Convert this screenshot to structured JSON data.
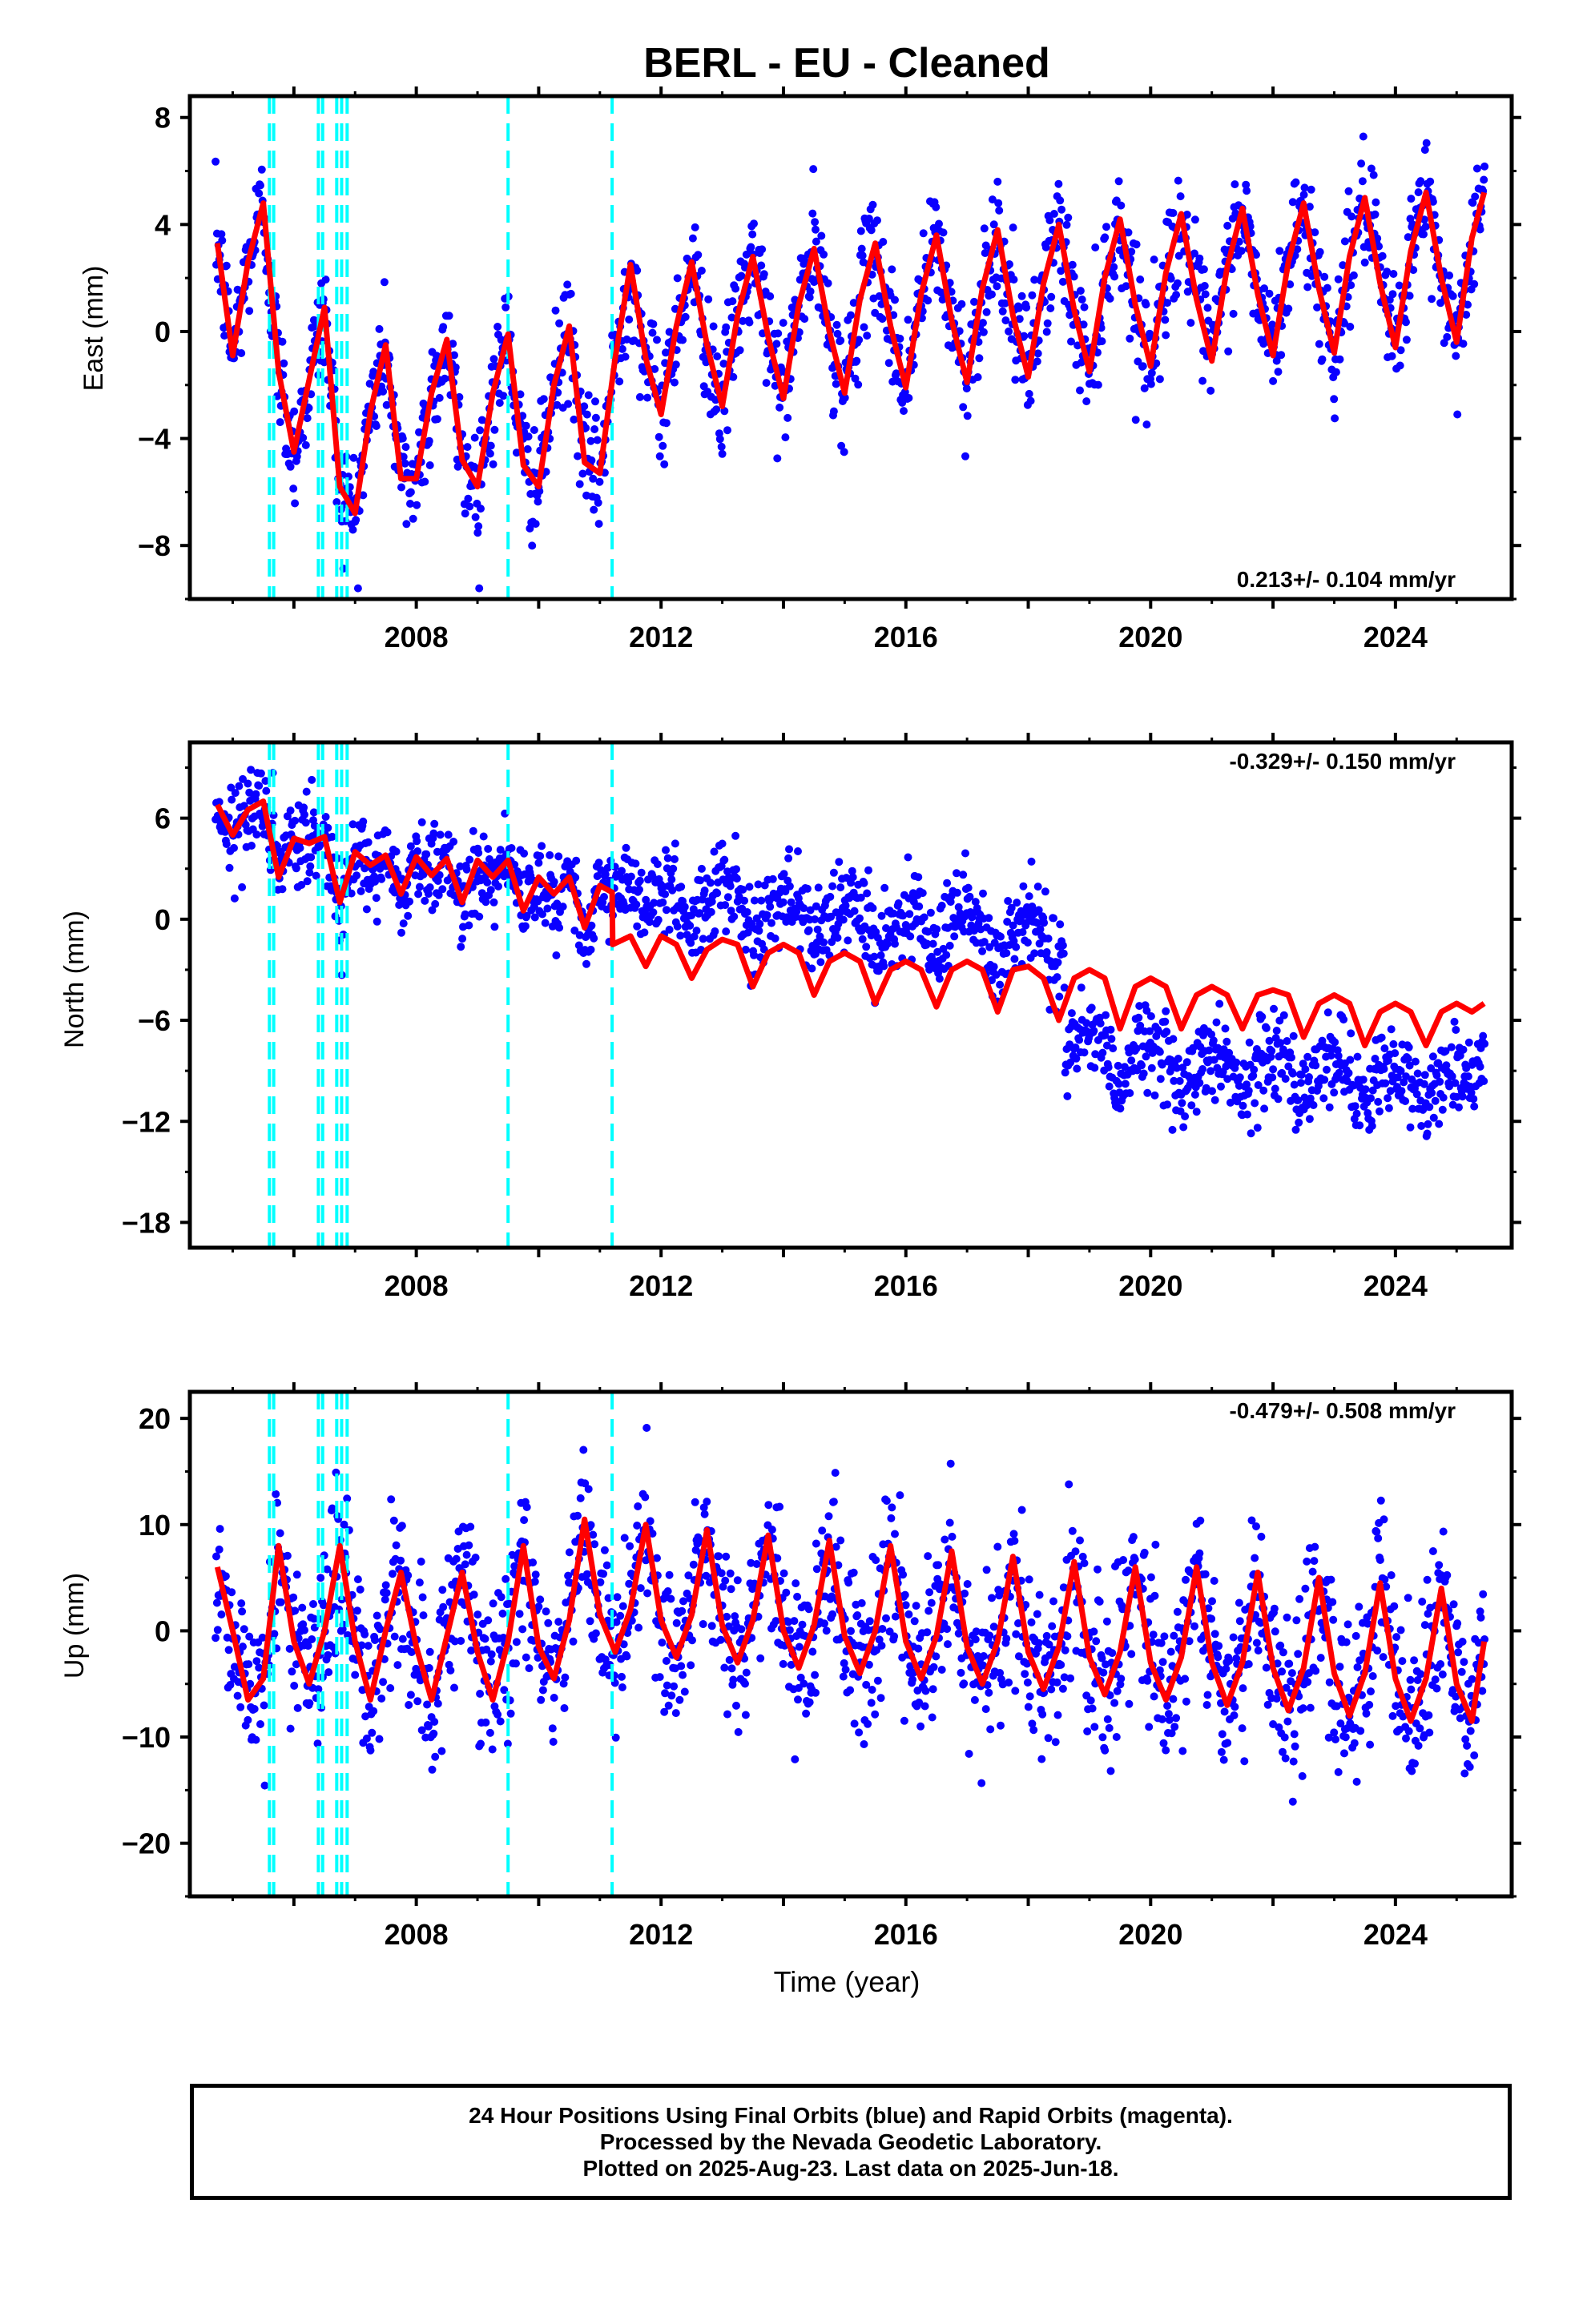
{
  "title": "BERL  - EU - Cleaned",
  "colors": {
    "data": "#0a00ff",
    "model": "#ff0000",
    "offset": "#00ffff",
    "axis": "#000000"
  },
  "chart_data": [
    {
      "type": "scatter",
      "name": "east",
      "ylabel": "East (mm)",
      "xlim": [
        2004.3,
        2025.9
      ],
      "ylim": [
        -10,
        8.8
      ],
      "yticks": [
        8,
        4,
        0,
        -4,
        -8
      ],
      "xticks": [
        2008,
        2012,
        2016,
        2020,
        2024
      ],
      "rate": "0.213+/- 0.104 mm/yr",
      "model": {
        "x": [
          2004.75,
          2005.0,
          2005.25,
          2005.5,
          2005.75,
          2006.0,
          2006.25,
          2006.5,
          2006.75,
          2007.0,
          2007.25,
          2007.5,
          2007.75,
          2008.0,
          2008.25,
          2008.5,
          2008.75,
          2009.0,
          2009.25,
          2009.5,
          2009.75,
          2010.0,
          2010.25,
          2010.5,
          2010.75,
          2011.0,
          2011.25,
          2011.5,
          2011.75,
          2012.0,
          2012.25,
          2012.5,
          2012.75,
          2013.0,
          2013.25,
          2013.5,
          2013.75,
          2014.0,
          2014.25,
          2014.5,
          2014.75,
          2015.0,
          2015.25,
          2015.5,
          2015.75,
          2016.0,
          2016.25,
          2016.5,
          2016.75,
          2017.0,
          2017.25,
          2017.5,
          2017.75,
          2018.0,
          2018.25,
          2018.5,
          2018.75,
          2019.0,
          2019.25,
          2019.5,
          2019.75,
          2020.0,
          2020.25,
          2020.5,
          2020.75,
          2021.0,
          2021.25,
          2021.5,
          2021.75,
          2022.0,
          2022.25,
          2022.5,
          2022.75,
          2023.0,
          2023.25,
          2023.5,
          2023.75,
          2024.0,
          2024.25,
          2024.5,
          2024.75,
          2025.0,
          2025.25,
          2025.45
        ],
        "y": [
          3.3,
          -0.9,
          2.6,
          4.8,
          -1.5,
          -4.5,
          -1.8,
          0.9,
          -5.8,
          -6.8,
          -3.0,
          -0.5,
          -5.5,
          -5.5,
          -2.3,
          -0.3,
          -4.8,
          -5.8,
          -2.3,
          -0.1,
          -5.0,
          -5.8,
          -2.0,
          0.2,
          -4.9,
          -5.3,
          -1.0,
          2.5,
          -1.0,
          -3.1,
          0.2,
          2.6,
          -0.5,
          -2.8,
          0.6,
          2.8,
          -0.2,
          -2.5,
          1.0,
          3.1,
          0.0,
          -2.3,
          1.2,
          3.3,
          0.2,
          -2.1,
          1.4,
          3.6,
          0.4,
          -1.9,
          1.6,
          3.8,
          0.6,
          -1.7,
          1.8,
          4.0,
          0.8,
          -1.5,
          2.0,
          4.2,
          1.0,
          -1.3,
          2.2,
          4.4,
          1.2,
          -1.1,
          2.4,
          4.6,
          1.4,
          -0.9,
          2.6,
          4.8,
          1.6,
          -0.8,
          2.8,
          5.0,
          1.8,
          -0.6,
          3.0,
          5.2,
          2.0,
          -0.4,
          3.5,
          5.2
        ]
      }
    },
    {
      "type": "scatter",
      "name": "north",
      "ylabel": "North (mm)",
      "xlim": [
        2004.3,
        2025.9
      ],
      "ylim": [
        -19.5,
        10.5
      ],
      "yticks": [
        6,
        0,
        -6,
        -12,
        -18
      ],
      "xticks": [
        2008,
        2012,
        2016,
        2020,
        2024
      ],
      "rate": "-0.329+/- 0.150 mm/yr",
      "model": {
        "x": [
          2004.75,
          2005.0,
          2005.25,
          2005.5,
          2005.75,
          2006.0,
          2006.25,
          2006.5,
          2006.75,
          2007.0,
          2007.25,
          2007.5,
          2007.75,
          2008.0,
          2008.25,
          2008.5,
          2008.75,
          2009.0,
          2009.25,
          2009.5,
          2009.75,
          2010.0,
          2010.25,
          2010.5,
          2010.75,
          2011.0,
          2011.2,
          2011.21,
          2011.5,
          2011.75,
          2012.0,
          2012.25,
          2012.5,
          2012.75,
          2013.0,
          2013.25,
          2013.5,
          2013.75,
          2014.0,
          2014.25,
          2014.5,
          2014.75,
          2015.0,
          2015.25,
          2015.5,
          2015.75,
          2016.0,
          2016.25,
          2016.5,
          2016.75,
          2017.0,
          2017.25,
          2017.5,
          2017.75,
          2018.0,
          2018.25,
          2018.5,
          2018.75,
          2019.0,
          2019.25,
          2019.5,
          2019.75,
          2020.0,
          2020.25,
          2020.5,
          2020.75,
          2021.0,
          2021.25,
          2021.5,
          2021.75,
          2022.0,
          2022.25,
          2022.5,
          2022.75,
          2023.0,
          2023.25,
          2023.5,
          2023.75,
          2024.0,
          2024.25,
          2024.5,
          2024.75,
          2025.0,
          2025.25,
          2025.45
        ],
        "y": [
          6.8,
          5.0,
          6.5,
          7.0,
          2.5,
          4.8,
          4.5,
          4.9,
          1.0,
          4.0,
          3.2,
          3.8,
          1.5,
          3.7,
          2.6,
          3.6,
          1.0,
          3.5,
          2.5,
          3.5,
          0.5,
          2.5,
          1.5,
          2.5,
          -0.5,
          2.0,
          1.6,
          -1.5,
          -1.0,
          -2.8,
          -1.0,
          -1.5,
          -3.5,
          -1.8,
          -1.2,
          -1.5,
          -4.0,
          -2.0,
          -1.5,
          -2.0,
          -4.5,
          -2.5,
          -2.0,
          -2.5,
          -5.0,
          -3.0,
          -2.5,
          -3.0,
          -5.2,
          -3.0,
          -2.5,
          -3.0,
          -5.5,
          -3.0,
          -2.8,
          -3.5,
          -6.0,
          -3.5,
          -3.0,
          -3.5,
          -6.5,
          -4.0,
          -3.5,
          -4.0,
          -6.5,
          -4.5,
          -4.0,
          -4.5,
          -6.5,
          -4.5,
          -4.2,
          -4.5,
          -7.0,
          -5.0,
          -4.5,
          -5.0,
          -7.5,
          -5.5,
          -5.0,
          -5.5,
          -7.5,
          -5.5,
          -5.0,
          -5.5,
          -5.0
        ]
      }
    },
    {
      "type": "scatter",
      "name": "up",
      "ylabel": "Up (mm)",
      "xlim": [
        2004.3,
        2025.9
      ],
      "ylim": [
        -25,
        22.5
      ],
      "yticks": [
        20,
        10,
        0,
        -10,
        -20
      ],
      "xticks": [
        2008,
        2012,
        2016,
        2020,
        2024
      ],
      "xlabel": "Time (year)",
      "rate": "-0.479+/- 0.508 mm/yr",
      "model": {
        "x": [
          2004.75,
          2005.0,
          2005.25,
          2005.5,
          2005.75,
          2006.0,
          2006.25,
          2006.5,
          2006.75,
          2007.0,
          2007.25,
          2007.5,
          2007.75,
          2008.0,
          2008.25,
          2008.5,
          2008.75,
          2009.0,
          2009.25,
          2009.5,
          2009.75,
          2010.0,
          2010.25,
          2010.5,
          2010.75,
          2011.0,
          2011.25,
          2011.5,
          2011.75,
          2012.0,
          2012.25,
          2012.5,
          2012.75,
          2013.0,
          2013.25,
          2013.5,
          2013.75,
          2014.0,
          2014.25,
          2014.5,
          2014.75,
          2015.0,
          2015.25,
          2015.5,
          2015.75,
          2016.0,
          2016.25,
          2016.5,
          2016.75,
          2017.0,
          2017.25,
          2017.5,
          2017.75,
          2018.0,
          2018.25,
          2018.5,
          2018.75,
          2019.0,
          2019.25,
          2019.5,
          2019.75,
          2020.0,
          2020.25,
          2020.5,
          2020.75,
          2021.0,
          2021.25,
          2021.5,
          2021.75,
          2022.0,
          2022.25,
          2022.5,
          2022.75,
          2023.0,
          2023.25,
          2023.5,
          2023.75,
          2024.0,
          2024.25,
          2024.5,
          2024.75,
          2025.0,
          2025.25,
          2025.45
        ],
        "y": [
          6.0,
          0.0,
          -6.5,
          -4.5,
          8.0,
          -1.0,
          -5.0,
          0.0,
          8.0,
          -1.0,
          -6.5,
          0.0,
          5.5,
          -1.5,
          -6.5,
          -0.5,
          5.5,
          -2.0,
          -6.5,
          -1.0,
          8.0,
          -1.5,
          -4.5,
          1.0,
          10.5,
          1.5,
          -2.0,
          2.0,
          10.0,
          1.0,
          -2.5,
          1.5,
          9.5,
          0.5,
          -3.0,
          1.0,
          9.0,
          0.0,
          -3.5,
          0.5,
          8.5,
          -0.5,
          -4.0,
          0.0,
          8.0,
          -1.0,
          -4.5,
          -0.5,
          7.5,
          -1.5,
          -5.0,
          -1.0,
          7.0,
          -2.0,
          -5.5,
          -1.5,
          6.5,
          -2.5,
          -6.0,
          -2.0,
          6.0,
          -3.0,
          -6.5,
          -2.5,
          6.0,
          -3.0,
          -7.0,
          -3.0,
          5.5,
          -3.5,
          -7.5,
          -3.5,
          5.0,
          -4.0,
          -8.0,
          -4.0,
          4.5,
          -4.5,
          -8.5,
          -4.5,
          4.0,
          -5.0,
          -8.5,
          -1.0
        ]
      }
    }
  ],
  "offsets": [
    2005.6,
    2005.67,
    2006.4,
    2006.47,
    2006.7,
    2006.78,
    2006.87,
    2009.5,
    2011.2
  ],
  "footer": {
    "line1": "24 Hour Positions Using Final Orbits (blue) and Rapid Orbits (magenta).",
    "line2": "Processed by the Nevada Geodetic Laboratory.",
    "line3": "Plotted on 2025-Aug-23. Last data on 2025-Jun-18."
  }
}
